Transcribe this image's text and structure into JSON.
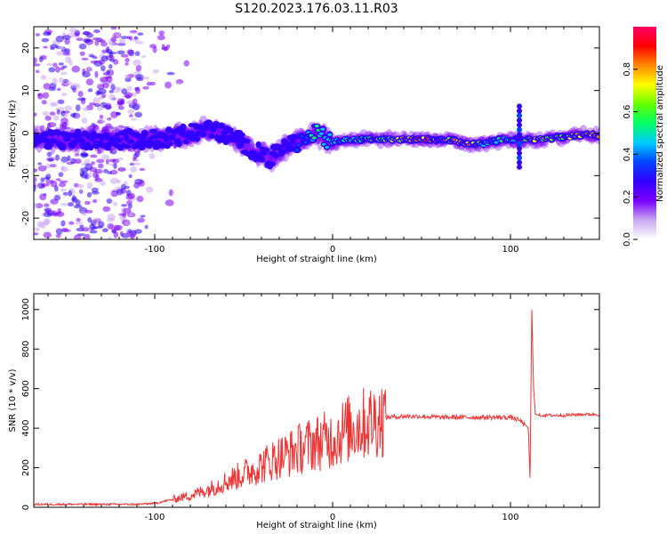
{
  "figure_title": "S120.2023.176.03.11.R03",
  "chart_data": [
    {
      "type": "heatmap",
      "xlabel": "Height of straight line (km)",
      "ylabel": "Frequency (Hz)",
      "xlim": [
        -168,
        150
      ],
      "ylim": [
        -25,
        25
      ],
      "xticks": [
        -100,
        0,
        100
      ],
      "xtick_labels": [
        "-100",
        "0",
        "100"
      ],
      "yticks": [
        -20,
        -10,
        0,
        10,
        20
      ],
      "ytick_labels": [
        "-20",
        "-10",
        "0",
        "10",
        "20"
      ],
      "colorbar": {
        "label": "Normalized spectral amplitude",
        "range": [
          0,
          1
        ],
        "ticks": [
          0.0,
          0.2,
          0.4,
          0.6,
          0.8
        ],
        "tick_labels": [
          "0.0",
          "0.2",
          "0.4",
          "0.6",
          "0.8"
        ],
        "colors": [
          "#ffffff",
          "#c9a8f0",
          "#7a00ff",
          "#3300ff",
          "#0044ff",
          "#00ccff",
          "#00ff66",
          "#66ff00",
          "#ffff00",
          "#ff8800",
          "#ff0000",
          "#ff0066"
        ]
      },
      "ridge": [
        {
          "x": -168,
          "y": -1.5,
          "amp": 0.15
        },
        {
          "x": -140,
          "y": -1.5,
          "amp": 0.2
        },
        {
          "x": -115,
          "y": -1.5,
          "amp": 0.25
        },
        {
          "x": -95,
          "y": -1.5,
          "amp": 0.3
        },
        {
          "x": -80,
          "y": 0,
          "amp": 0.35
        },
        {
          "x": -70,
          "y": 1,
          "amp": 0.3
        },
        {
          "x": -55,
          "y": -1,
          "amp": 0.3
        },
        {
          "x": -45,
          "y": -4,
          "amp": 0.25
        },
        {
          "x": -35,
          "y": -6,
          "amp": 0.3
        },
        {
          "x": -25,
          "y": -3,
          "amp": 0.3
        },
        {
          "x": -15,
          "y": -1,
          "amp": 0.4
        },
        {
          "x": -10,
          "y": 0,
          "amp": 0.6
        },
        {
          "x": -5,
          "y": -1,
          "amp": 0.5
        },
        {
          "x": 0,
          "y": -2,
          "amp": 0.5
        },
        {
          "x": 10,
          "y": -1.5,
          "amp": 0.55
        },
        {
          "x": 30,
          "y": -1.5,
          "amp": 0.65
        },
        {
          "x": 50,
          "y": -1.5,
          "amp": 0.9
        },
        {
          "x": 65,
          "y": -1.5,
          "amp": 0.7
        },
        {
          "x": 75,
          "y": -2.5,
          "amp": 0.85
        },
        {
          "x": 85,
          "y": -2.5,
          "amp": 0.5
        },
        {
          "x": 95,
          "y": -1.5,
          "amp": 0.6
        },
        {
          "x": 105,
          "y": -1.5,
          "amp": 0.5
        },
        {
          "x": 115,
          "y": -1.5,
          "amp": 0.75
        },
        {
          "x": 130,
          "y": -1,
          "amp": 0.6
        },
        {
          "x": 140,
          "y": -0.5,
          "amp": 0.85
        },
        {
          "x": 150,
          "y": -0.5,
          "amp": 0.8
        }
      ]
    },
    {
      "type": "line",
      "xlabel": "Height of straight line (km)",
      "ylabel": "SNR (10 * v/v)",
      "xlim": [
        -168,
        150
      ],
      "ylim": [
        0,
        1080
      ],
      "xticks": [
        -100,
        0,
        100
      ],
      "xtick_labels": [
        "-100",
        "0",
        "100"
      ],
      "yticks": [
        0,
        200,
        400,
        600,
        800,
        1000
      ],
      "ytick_labels": [
        "0",
        "200",
        "400",
        "600",
        "800",
        "1000"
      ],
      "series": [
        {
          "name": "SNR",
          "color": "#ee3333",
          "x": [
            -168,
            -150,
            -130,
            -110,
            -100,
            -95,
            -90,
            -85,
            -80,
            -75,
            -70,
            -65,
            -60,
            -55,
            -50,
            -45,
            -40,
            -35,
            -30,
            -25,
            -20,
            -15,
            -10,
            -5,
            0,
            5,
            10,
            15,
            20,
            25,
            30,
            40,
            50,
            60,
            70,
            80,
            90,
            100,
            105,
            108,
            110,
            111,
            112,
            113,
            114,
            116,
            120,
            130,
            140,
            150
          ],
          "y": [
            15,
            15,
            15,
            15,
            20,
            30,
            40,
            50,
            60,
            75,
            90,
            110,
            130,
            150,
            170,
            190,
            210,
            235,
            255,
            270,
            290,
            310,
            325,
            335,
            345,
            380,
            400,
            415,
            430,
            445,
            455,
            460,
            460,
            455,
            455,
            455,
            455,
            455,
            440,
            420,
            400,
            150,
            1000,
            600,
            470,
            465,
            465,
            465,
            470,
            470
          ]
        }
      ]
    }
  ]
}
